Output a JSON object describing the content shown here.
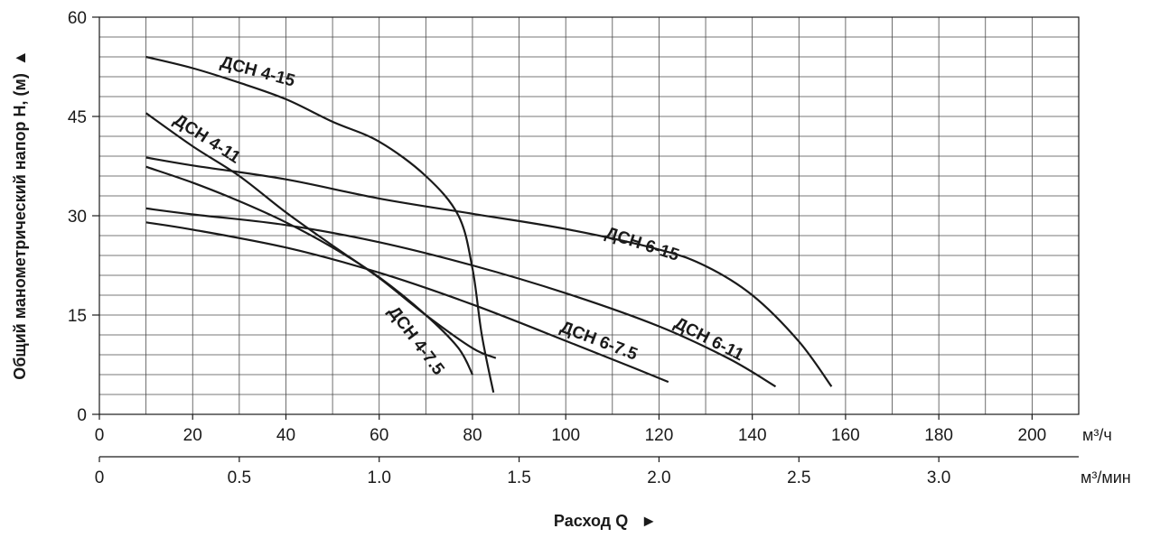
{
  "chart_data": {
    "type": "line",
    "title": "",
    "ylabel": "Общий манометрический напор H, (м)",
    "ylabel_arrow": "▲",
    "xlabel": "Расход Q",
    "xlabel_arrow": "►",
    "ylim": [
      0,
      60
    ],
    "yticks": [
      "0",
      "15",
      "30",
      "45",
      "60"
    ],
    "x_primary": {
      "unit": "м³/ч",
      "lim": [
        0,
        210
      ],
      "ticks": [
        "0",
        "20",
        "40",
        "60",
        "80",
        "100",
        "120",
        "140",
        "160",
        "180",
        "200"
      ]
    },
    "x_secondary": {
      "unit": "м³/мин",
      "ticks": [
        "0",
        "0.5",
        "1.0",
        "1.5",
        "2.0",
        "2.5",
        "3.0"
      ]
    },
    "grid": true,
    "series": [
      {
        "name": "ДСН 4-15",
        "points": [
          [
            10,
            54
          ],
          [
            20,
            52.3
          ],
          [
            30,
            50.1
          ],
          [
            40,
            47.6
          ],
          [
            50,
            44.2
          ],
          [
            60,
            41.2
          ],
          [
            70,
            36
          ],
          [
            77,
            30
          ],
          [
            80,
            22
          ],
          [
            82,
            12
          ],
          [
            84.5,
            3.3
          ]
        ]
      },
      {
        "name": "ДСН 4-11",
        "points": [
          [
            10,
            45.5
          ],
          [
            20,
            40.5
          ],
          [
            30,
            36
          ],
          [
            40,
            30.5
          ],
          [
            50,
            25.5
          ],
          [
            60,
            20.6
          ],
          [
            70,
            15
          ],
          [
            80,
            10
          ],
          [
            85,
            8.5
          ]
        ]
      },
      {
        "name": "ДСН 4-7.5",
        "points": [
          [
            10,
            37.4
          ],
          [
            20,
            35
          ],
          [
            30,
            32.2
          ],
          [
            40,
            29
          ],
          [
            50,
            25.2
          ],
          [
            60,
            20.7
          ],
          [
            70,
            15
          ],
          [
            77,
            10
          ],
          [
            80,
            6
          ]
        ]
      },
      {
        "name": "ДСН 6-15",
        "points": [
          [
            10,
            38.8
          ],
          [
            20,
            37.6
          ],
          [
            40,
            35.5
          ],
          [
            60,
            32.6
          ],
          [
            80,
            30.3
          ],
          [
            100,
            28
          ],
          [
            120,
            24.9
          ],
          [
            130,
            22.4
          ],
          [
            140,
            18
          ],
          [
            150,
            11
          ],
          [
            157,
            4.2
          ]
        ]
      },
      {
        "name": "ДСН 6-11",
        "points": [
          [
            10,
            31.1
          ],
          [
            20,
            30.2
          ],
          [
            40,
            28.6
          ],
          [
            60,
            26
          ],
          [
            80,
            22.5
          ],
          [
            100,
            18.3
          ],
          [
            120,
            13.3
          ],
          [
            135,
            8.4
          ],
          [
            145,
            4.2
          ]
        ]
      },
      {
        "name": "ДСН 6-7.5",
        "points": [
          [
            10,
            29
          ],
          [
            20,
            27.9
          ],
          [
            40,
            25.2
          ],
          [
            60,
            21.4
          ],
          [
            80,
            16.6
          ],
          [
            100,
            11.1
          ],
          [
            115,
            6.9
          ],
          [
            122,
            4.9
          ]
        ]
      }
    ]
  }
}
